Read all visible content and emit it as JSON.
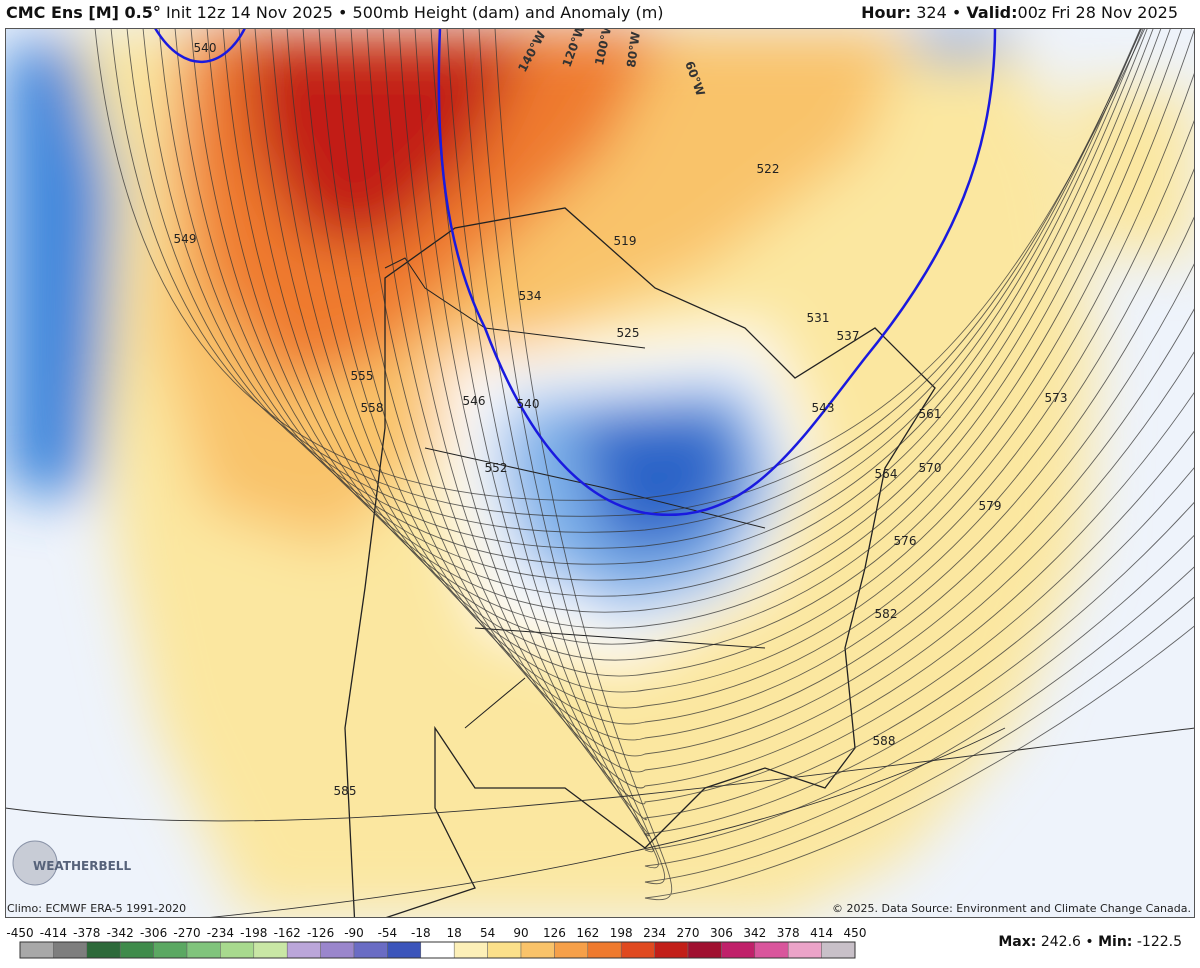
{
  "header": {
    "model": "CMC Ens [M] 0.5°",
    "init": "Init 12z 14 Nov 2025",
    "field": "500mb Height (dam) and Anomaly (m)",
    "hour_label": "Hour:",
    "hour": "324",
    "valid_label": "Valid:",
    "valid": "00z Fri 28 Nov 2025"
  },
  "map": {
    "contour_labels": [
      540,
      549,
      555,
      558,
      546,
      552,
      534,
      525,
      519,
      522,
      531,
      537,
      540,
      543,
      561,
      573,
      570,
      564,
      579,
      576,
      582,
      588,
      585
    ],
    "longitude_labels": [
      "140°W",
      "120°W",
      "100°W",
      "80°W",
      "60°W"
    ],
    "logo": "WEATHERBELL",
    "climo": "Climo: ECMWF ERA-5 1991-2020",
    "copyright": "© 2025. Data Source: Environment and Climate Change Canada."
  },
  "colorbar": {
    "ticks": [
      -450,
      -414,
      -378,
      -342,
      -306,
      -270,
      -234,
      -198,
      -162,
      -126,
      -90,
      -54,
      -18,
      18,
      54,
      90,
      126,
      162,
      198,
      234,
      270,
      306,
      342,
      378,
      414,
      450
    ],
    "colors": [
      "#a8a8a8",
      "#7e7e7e",
      "#2d6a3a",
      "#3f8b4b",
      "#5ba862",
      "#80c47c",
      "#a8da8e",
      "#c9e7a5",
      "#bba6da",
      "#9a86cc",
      "#6a6cc4",
      "#3c55bb",
      "#ffffff",
      "#fdf0b8",
      "#fbe08a",
      "#f9c36a",
      "#f6a049",
      "#ef7a2e",
      "#e0491f",
      "#c21e18",
      "#a01030",
      "#c0206a",
      "#d9559c",
      "#eba3c8",
      "#c8c0c8"
    ]
  },
  "footer": {
    "max_label": "Max:",
    "max": 242.6,
    "min_label": "Min:",
    "min": -122.5
  }
}
